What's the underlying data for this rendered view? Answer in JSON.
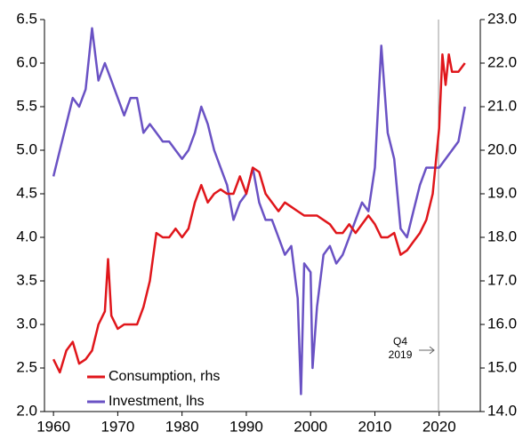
{
  "chart_data": {
    "type": "line",
    "xlim": [
      1958.6,
      2026.4
    ],
    "xticks": [
      1960,
      1970,
      1980,
      1990,
      2000,
      2010,
      2020
    ],
    "ylim": [
      2.0,
      6.5
    ],
    "yticks": [
      {
        "value": 2.0,
        "label": "2.0"
      },
      {
        "value": 2.5,
        "label": "2.5"
      },
      {
        "value": 3.0,
        "label": "3.0"
      },
      {
        "value": 3.5,
        "label": "3.5"
      },
      {
        "value": 4.0,
        "label": "4.0"
      },
      {
        "value": 4.5,
        "label": "4.5"
      },
      {
        "value": 5.0,
        "label": "5.0"
      },
      {
        "value": 5.5,
        "label": "5.5"
      },
      {
        "value": 6.0,
        "label": "6.0"
      },
      {
        "value": 6.5,
        "label": "6.5"
      }
    ],
    "y2lim": [
      14.0,
      23.0
    ],
    "y2ticks": [
      {
        "value": 14.0,
        "label": "14.0"
      },
      {
        "value": 15.0,
        "label": "15.0"
      },
      {
        "value": 16.0,
        "label": "16.0"
      },
      {
        "value": 17.0,
        "label": "17.0"
      },
      {
        "value": 18.0,
        "label": "18.0"
      },
      {
        "value": 19.0,
        "label": "19.0"
      },
      {
        "value": 20.0,
        "label": "20.0"
      },
      {
        "value": 21.0,
        "label": "21.0"
      },
      {
        "value": 22.0,
        "label": "22.0"
      },
      {
        "value": 23.0,
        "label": "23.0"
      }
    ],
    "reference_line": 2019.9,
    "annotation": [
      "Q4",
      "2019"
    ],
    "legend": "lower left",
    "series": [
      {
        "name": "Consumption, rhs",
        "color": "#e0161b",
        "axis": "y2",
        "x": [
          1960,
          1961,
          1962,
          1963,
          1964,
          1965,
          1966,
          1967,
          1968,
          1968.5,
          1969,
          1970,
          1971,
          1972,
          1973,
          1974,
          1975,
          1976,
          1977,
          1978,
          1979,
          1980,
          1981,
          1982,
          1983,
          1984,
          1985,
          1986,
          1987,
          1988,
          1989,
          1990,
          1991,
          1992,
          1993,
          1994,
          1995,
          1996,
          1997,
          1998,
          1999,
          2000,
          2001,
          2002,
          2003,
          2004,
          2005,
          2006,
          2007,
          2008,
          2009,
          2010,
          2011,
          2012,
          2013,
          2014,
          2015,
          2016,
          2017,
          2018,
          2019,
          2020,
          2020.5,
          2021,
          2021.5,
          2022,
          2023,
          2024
        ],
        "values": [
          15.2,
          14.9,
          15.4,
          15.6,
          15.1,
          15.2,
          15.4,
          16.0,
          16.3,
          17.5,
          16.2,
          15.9,
          16.0,
          16.0,
          16.0,
          16.4,
          17.0,
          18.1,
          18.0,
          18.0,
          18.2,
          18.0,
          18.2,
          18.8,
          19.2,
          18.8,
          19.0,
          19.1,
          19.0,
          19.0,
          19.4,
          19.0,
          19.6,
          19.5,
          19.0,
          18.8,
          18.6,
          18.8,
          18.7,
          18.6,
          18.5,
          18.5,
          18.5,
          18.4,
          18.3,
          18.1,
          18.1,
          18.3,
          18.1,
          18.3,
          18.5,
          18.3,
          18.0,
          18.0,
          18.1,
          17.6,
          17.7,
          17.9,
          18.1,
          18.4,
          19.0,
          20.5,
          22.2,
          21.5,
          22.2,
          21.8,
          21.8,
          22.0
        ]
      },
      {
        "name": "Investment, lhs",
        "color": "#6a52c4",
        "axis": "y",
        "x": [
          1960,
          1961,
          1962,
          1963,
          1964,
          1965,
          1966,
          1967,
          1968,
          1969,
          1970,
          1971,
          1972,
          1973,
          1974,
          1975,
          1976,
          1977,
          1978,
          1979,
          1980,
          1981,
          1982,
          1983,
          1984,
          1985,
          1986,
          1987,
          1988,
          1989,
          1990,
          1991,
          1992,
          1993,
          1994,
          1995,
          1996,
          1997,
          1998,
          1998.5,
          1999,
          2000,
          2000.3,
          2001,
          2002,
          2003,
          2004,
          2005,
          2006,
          2007,
          2008,
          2009,
          2010,
          2011,
          2012,
          2013,
          2014,
          2015,
          2016,
          2017,
          2018,
          2019,
          2020,
          2021,
          2022,
          2023,
          2024
        ],
        "values": [
          4.7,
          5.0,
          5.3,
          5.6,
          5.5,
          5.7,
          6.4,
          5.8,
          6.0,
          5.8,
          5.6,
          5.4,
          5.6,
          5.6,
          5.2,
          5.3,
          5.2,
          5.1,
          5.1,
          5.0,
          4.9,
          5.0,
          5.2,
          5.5,
          5.3,
          5.0,
          4.8,
          4.6,
          4.2,
          4.4,
          4.5,
          4.8,
          4.4,
          4.2,
          4.2,
          4.0,
          3.8,
          3.9,
          3.3,
          2.2,
          3.7,
          3.6,
          2.5,
          3.2,
          3.8,
          3.9,
          3.7,
          3.8,
          4.0,
          4.2,
          4.4,
          4.3,
          4.8,
          6.2,
          5.2,
          4.9,
          4.1,
          4.0,
          4.3,
          4.6,
          4.8,
          4.8,
          4.8,
          4.9,
          5.0,
          5.1,
          5.5
        ]
      }
    ]
  }
}
